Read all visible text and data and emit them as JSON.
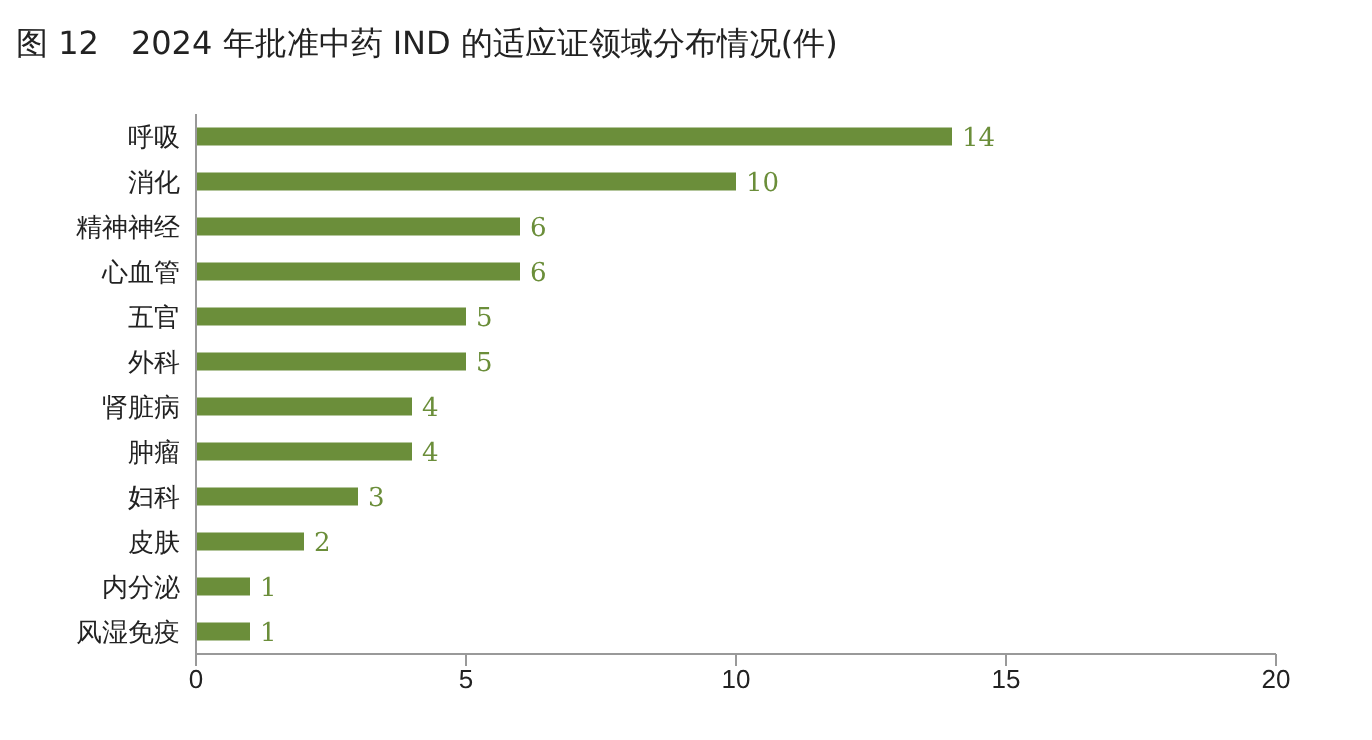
{
  "chart_data": {
    "type": "bar",
    "orientation": "horizontal",
    "title": "图 12　2024 年批准中药 IND 的适应证领域分布情况(件)",
    "categories": [
      "呼吸",
      "消化",
      "精神神经",
      "心血管",
      "五官",
      "外科",
      "肾脏病",
      "肿瘤",
      "妇科",
      "皮肤",
      "内分泌",
      "风湿免疫"
    ],
    "values": [
      14,
      10,
      6,
      6,
      5,
      5,
      4,
      4,
      3,
      2,
      1,
      1
    ],
    "color": "#6b8e3a",
    "xlim": [
      0,
      20
    ],
    "xticks": [
      0,
      5,
      10,
      15,
      20
    ],
    "data_labels": true
  }
}
